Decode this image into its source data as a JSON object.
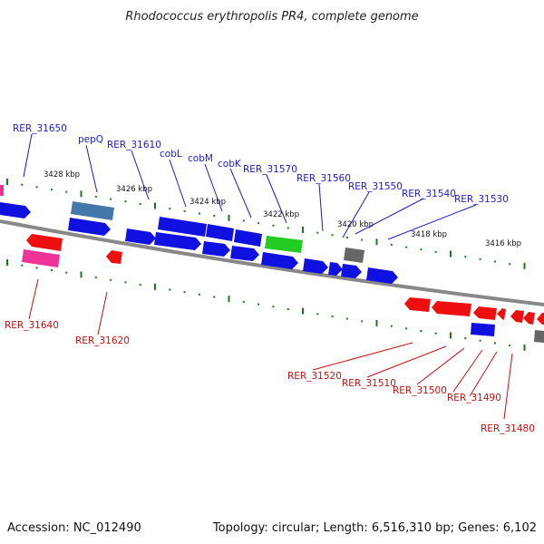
{
  "title": "Rhodococcus erythropolis PR4, complete genome",
  "footer": {
    "accession": "Accession: NC_012490",
    "topology": "Topology: circular; Length: 6,516,310 bp; Genes: 6,102"
  },
  "colors": {
    "forward_gene": "#1010e0",
    "reverse_gene": "#ee1010",
    "grey_gene": "#666666",
    "green_gene": "#22cc22",
    "pink_gene": "#ee3399",
    "steel_gene": "#4477aa",
    "backbone": "#888888",
    "tick": "#1a7a1a",
    "forward_label": "#1a1ad0",
    "reverse_label": "#c81010"
  },
  "scale_labels": [
    "3428 kbp",
    "3426 kbp",
    "3424 kbp",
    "3422 kbp",
    "3420 kbp",
    "3418 kbp",
    "3416 kbp"
  ],
  "forward_labels": [
    "RER_31650",
    "pepQ",
    "RER_31610",
    "cobL",
    "cobM",
    "cobK",
    "RER_31570",
    "RER_31560",
    "RER_31550",
    "RER_31540",
    "RER_31530"
  ],
  "reverse_labels": [
    "RER_31640",
    "RER_31620",
    "RER_31520",
    "RER_31510",
    "RER_31500",
    "RER_31490",
    "RER_31480"
  ]
}
